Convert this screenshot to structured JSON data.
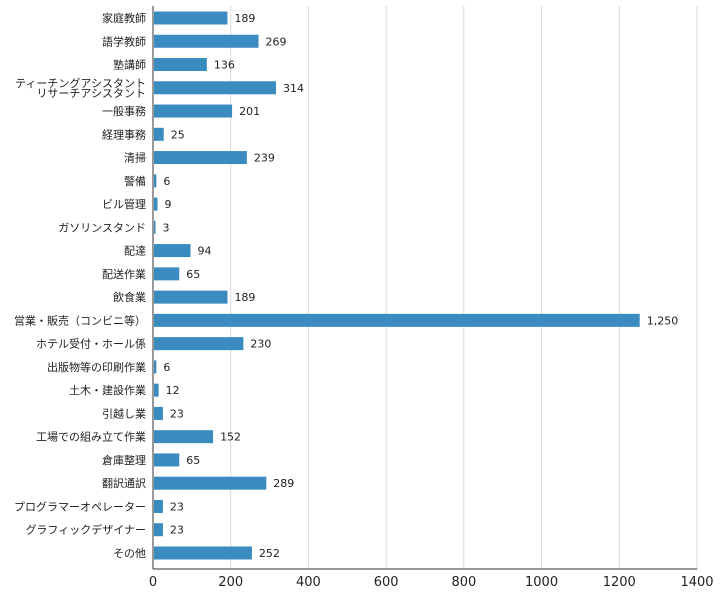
{
  "chart_data": {
    "type": "bar",
    "orientation": "horizontal",
    "title": "",
    "xlabel": "",
    "ylabel": "",
    "xlim": [
      0,
      1400
    ],
    "x_ticks": [
      0,
      200,
      400,
      600,
      800,
      1000,
      1200,
      1400
    ],
    "grid": true,
    "bar_color": "#3a8bbf",
    "categories": [
      "家庭教師",
      "語学教師",
      "塾講師",
      "ティーチングアシスタント\nリサーチアシスタント",
      "一般事務",
      "経理事務",
      "清掃",
      "警備",
      "ビル管理",
      "ガソリンスタンド",
      "配達",
      "配送作業",
      "飲食業",
      "営業・販売（コンビニ等）",
      "ホテル受付・ホール係",
      "出版物等の印刷作業",
      "土木・建設作業",
      "引越し業",
      "工場での組み立て作業",
      "倉庫整理",
      "翻訳通訳",
      "プログラマーオペレーター",
      "グラフィックデザイナー",
      "その他"
    ],
    "values": [
      189,
      269,
      136,
      314,
      201,
      25,
      239,
      6,
      9,
      3,
      94,
      65,
      189,
      1250,
      230,
      6,
      12,
      23,
      152,
      65,
      289,
      23,
      23,
      252
    ],
    "value_labels": [
      "189",
      "269",
      "136",
      "314",
      "201",
      "25",
      "239",
      "6",
      "9",
      "3",
      "94",
      "65",
      "189",
      "1,250",
      "230",
      "6",
      "12",
      "23",
      "152",
      "65",
      "289",
      "23",
      "23",
      "252"
    ]
  }
}
